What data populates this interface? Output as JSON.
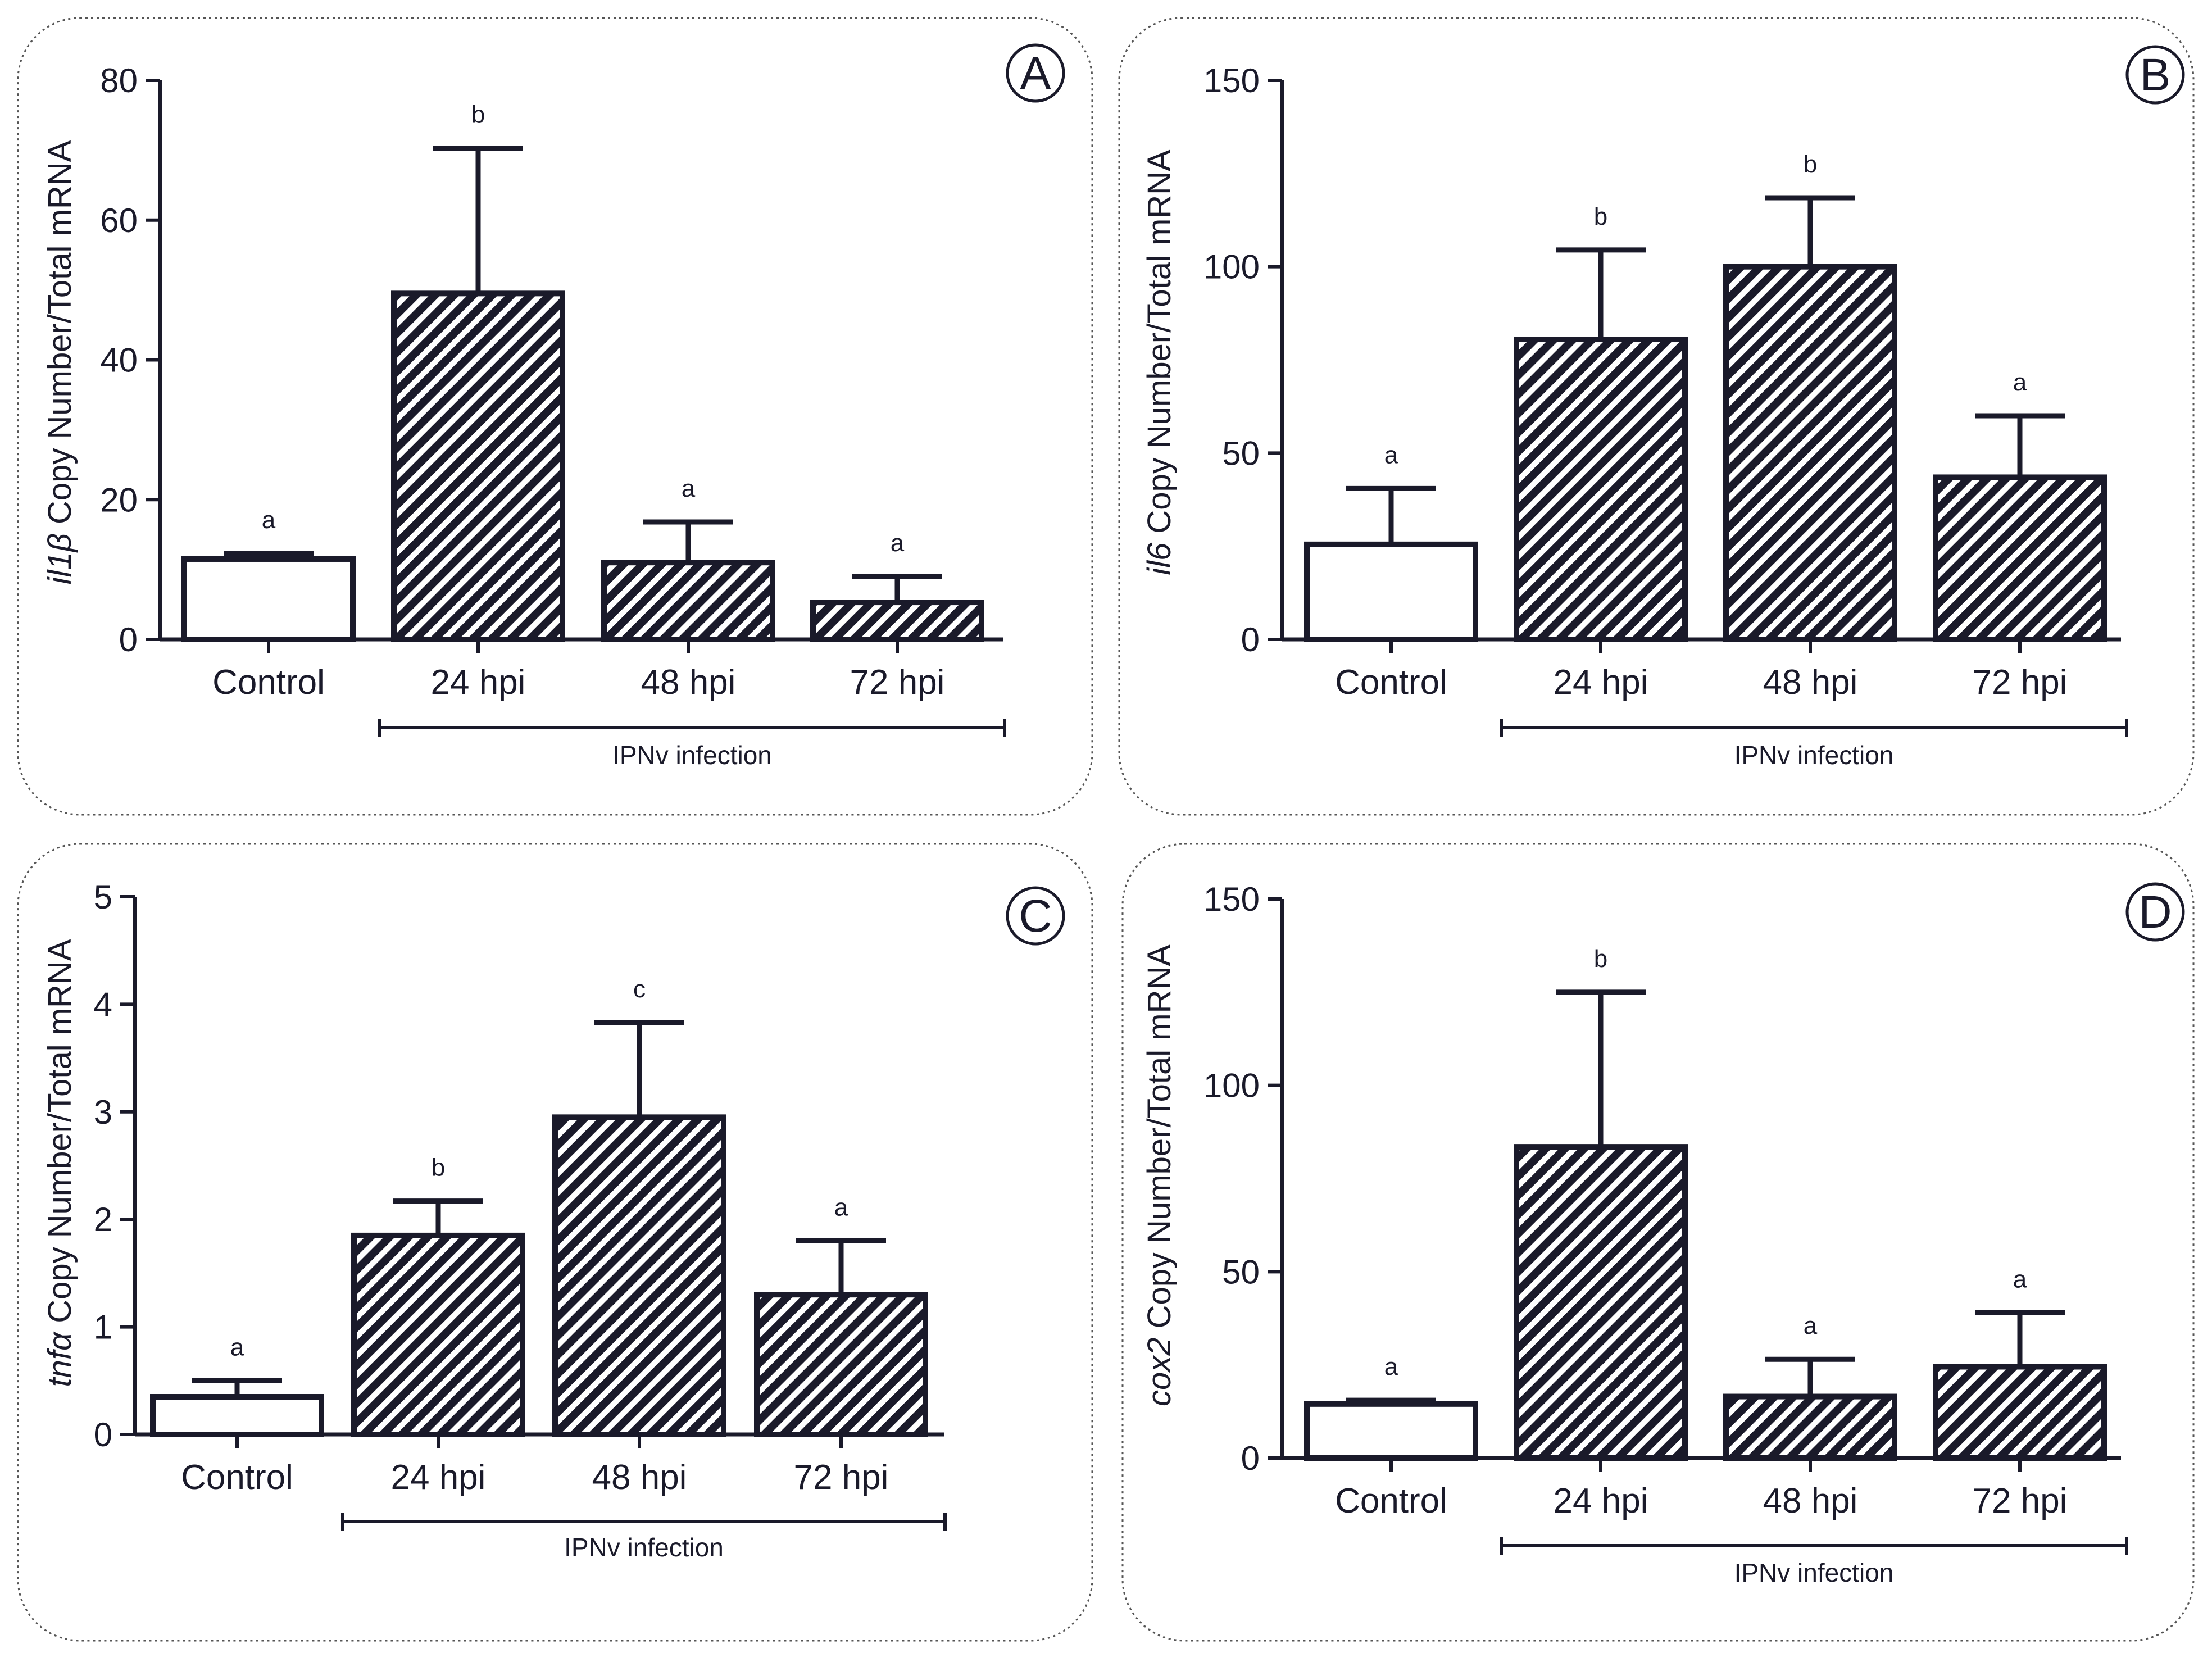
{
  "chart_data": [
    {
      "type": "bar",
      "panel": "A",
      "ylabel_gene": "il1β",
      "ylabel_rest": " Copy Number/Total mRNA",
      "categories": [
        "Control",
        "24 hpi",
        "48 hpi",
        "72 hpi"
      ],
      "values": [
        11.5,
        49.5,
        11,
        5.3
      ],
      "errors": [
        0.8,
        20.8,
        5.8,
        3.7
      ],
      "significance": [
        "a",
        "b",
        "a",
        "a"
      ],
      "patterns": [
        "open",
        "hatched",
        "hatched",
        "hatched"
      ],
      "ylim": [
        0,
        80
      ],
      "yticks": [
        0,
        20,
        40,
        60,
        80
      ],
      "group_label": "IPNv infection",
      "grid": false
    },
    {
      "type": "bar",
      "panel": "B",
      "ylabel_gene": "il6",
      "ylabel_rest": " Copy Number/Total mRNA",
      "categories": [
        "Control",
        "24 hpi",
        "48 hpi",
        "72 hpi"
      ],
      "values": [
        25.5,
        80.5,
        100,
        43.5
      ],
      "errors": [
        15,
        24,
        18.5,
        16.5
      ],
      "significance": [
        "a",
        "b",
        "b",
        "a"
      ],
      "patterns": [
        "open",
        "hatched",
        "hatched",
        "hatched"
      ],
      "ylim": [
        0,
        150
      ],
      "yticks": [
        0,
        50,
        100,
        150
      ],
      "group_label": "IPNv infection",
      "grid": false
    },
    {
      "type": "bar",
      "panel": "C",
      "ylabel_gene": "tnfα",
      "ylabel_rest": " Copy Number/Total mRNA",
      "categories": [
        "Control",
        "24 hpi",
        "48 hpi",
        "72 hpi"
      ],
      "values": [
        0.35,
        1.85,
        2.95,
        1.3
      ],
      "errors": [
        0.15,
        0.32,
        0.88,
        0.5
      ],
      "significance": [
        "a",
        "b",
        "c",
        "a"
      ],
      "patterns": [
        "open",
        "hatched",
        "hatched",
        "hatched"
      ],
      "ylim": [
        0,
        5
      ],
      "yticks": [
        0,
        1,
        2,
        3,
        4,
        5
      ],
      "group_label": "IPNv infection",
      "grid": false
    },
    {
      "type": "bar",
      "panel": "D",
      "ylabel_gene": "cox2",
      "ylabel_rest": " Copy Number/Total mRNA",
      "categories": [
        "Control",
        "24 hpi",
        "48 hpi",
        "72 hpi"
      ],
      "values": [
        14.5,
        83.5,
        16.5,
        24.5
      ],
      "errors": [
        1,
        41.5,
        10,
        14.5
      ],
      "significance": [
        "a",
        "b",
        "a",
        "a"
      ],
      "patterns": [
        "open",
        "hatched",
        "hatched",
        "hatched"
      ],
      "ylim": [
        0,
        150
      ],
      "yticks": [
        0,
        50,
        100,
        150
      ],
      "group_label": "IPNv infection",
      "grid": false
    }
  ],
  "colors": {
    "ink": "#1a1a2a",
    "panel_border": "#555555",
    "background": "#ffffff"
  }
}
